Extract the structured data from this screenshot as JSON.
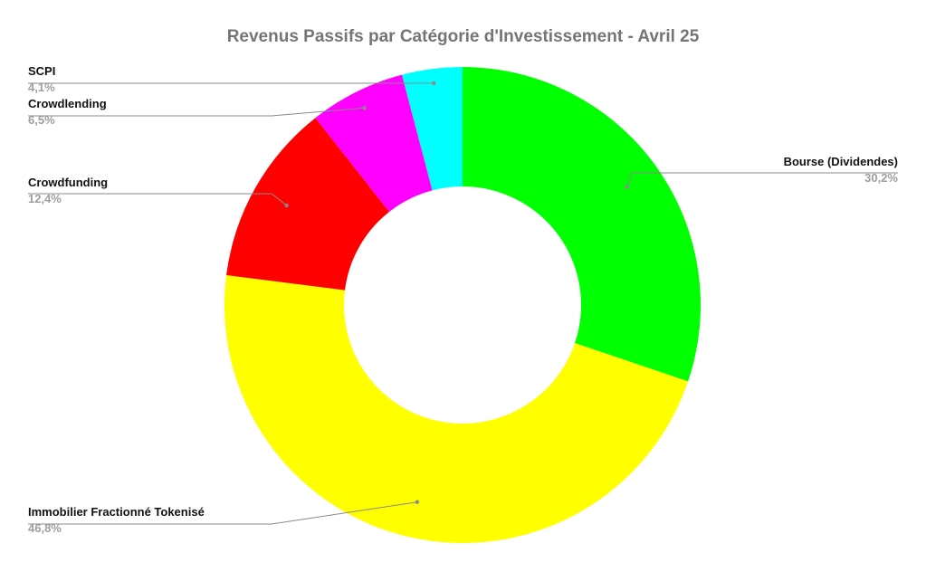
{
  "chart_data": {
    "type": "pie",
    "title": "Revenus Passifs par Catégorie d'Investissement - Avril 25",
    "donut": true,
    "slices": [
      {
        "label": "Bourse (Dividendes)",
        "value": 30.2,
        "value_label": "30,2%",
        "color": "#00ff00"
      },
      {
        "label": "Immobilier Fractionné Tokenisé",
        "value": 46.8,
        "value_label": "46,8%",
        "color": "#ffff00"
      },
      {
        "label": "Crowdfunding",
        "value": 12.4,
        "value_label": "12,4%",
        "color": "#ff0000"
      },
      {
        "label": "Crowdlending",
        "value": 6.5,
        "value_label": "6,5%",
        "color": "#ff00ff"
      },
      {
        "label": "SCPI",
        "value": 4.1,
        "value_label": "4,1%",
        "color": "#00ffff"
      }
    ],
    "legend": "none",
    "label_style": "callout"
  }
}
